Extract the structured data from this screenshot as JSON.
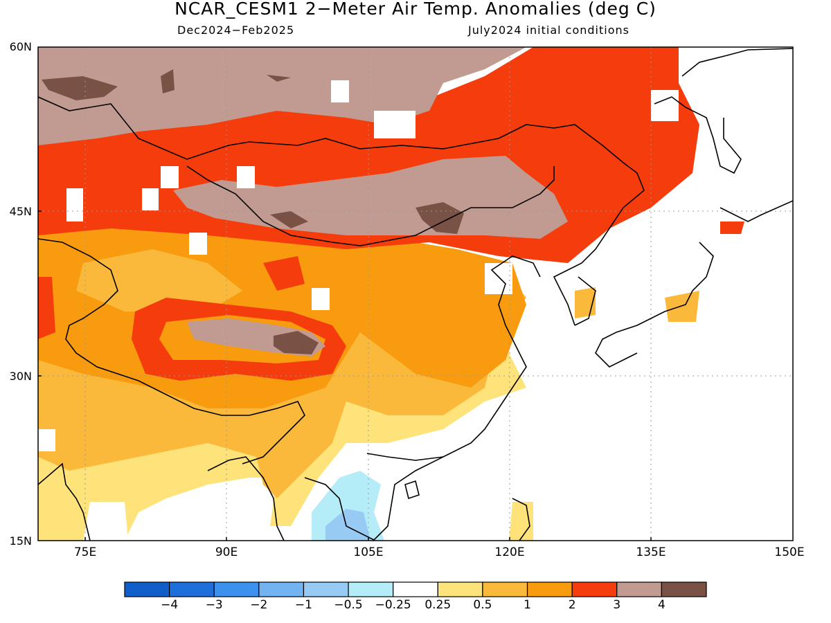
{
  "title": "NCAR_CESM1 2−Meter Air Temp. Anomalies (deg C)",
  "subtitle_left": "Dec2024−Feb2025",
  "subtitle_right": "July2024 initial conditions",
  "map": {
    "lat_labels": [
      "60N",
      "45N",
      "30N",
      "15N"
    ],
    "lon_labels": [
      "75E",
      "90E",
      "105E",
      "120E",
      "135E",
      "150E"
    ],
    "extent": {
      "lon": [
        70,
        150
      ],
      "lat": [
        15,
        60
      ]
    }
  },
  "colorbar": {
    "labels": [
      "−4",
      "−3",
      "−2",
      "−1",
      "−0.5",
      "−0.25",
      "0.25",
      "0.5",
      "1",
      "2",
      "3",
      "4"
    ],
    "colors": [
      "#0f5ec9",
      "#1e6fdc",
      "#3c90ee",
      "#74b3f2",
      "#98cbf4",
      "#b4ecf7",
      "#ffffff",
      "#fee37a",
      "#fbb93c",
      "#f89b0e",
      "#f53c0d",
      "#c19b91",
      "#7a5145"
    ]
  }
}
